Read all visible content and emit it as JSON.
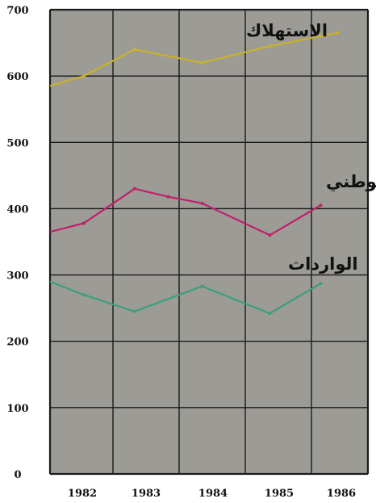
{
  "chart_data": {
    "type": "line",
    "x": [
      "1982",
      "1983",
      "1984",
      "1985",
      "1986"
    ],
    "ylim": [
      0,
      700
    ],
    "yticks": [
      "0",
      "100",
      "200",
      "300",
      "400",
      "500",
      "600",
      "700"
    ],
    "grid": true,
    "series": [
      {
        "name": "الاستهلاك",
        "color": "#c9b22a",
        "points": [
          [
            1981.5,
            585
          ],
          [
            1982,
            600
          ],
          [
            1982.75,
            640
          ],
          [
            1983.75,
            620
          ],
          [
            1984.75,
            645
          ],
          [
            1985.5,
            660
          ],
          [
            1985.75,
            665
          ]
        ]
      },
      {
        "name": "الانتاج الوطني",
        "color": "#c0206a",
        "points": [
          [
            1981.5,
            365
          ],
          [
            1982,
            378
          ],
          [
            1982.75,
            430
          ],
          [
            1983.25,
            418
          ],
          [
            1983.75,
            408
          ],
          [
            1984.75,
            360
          ],
          [
            1985.5,
            405
          ]
        ]
      },
      {
        "name": "الواردات",
        "color": "#3aa07a",
        "points": [
          [
            1981.5,
            290
          ],
          [
            1982,
            270
          ],
          [
            1982.75,
            245
          ],
          [
            1983.75,
            283
          ],
          [
            1984.75,
            242
          ],
          [
            1985.5,
            287
          ]
        ]
      }
    ]
  }
}
